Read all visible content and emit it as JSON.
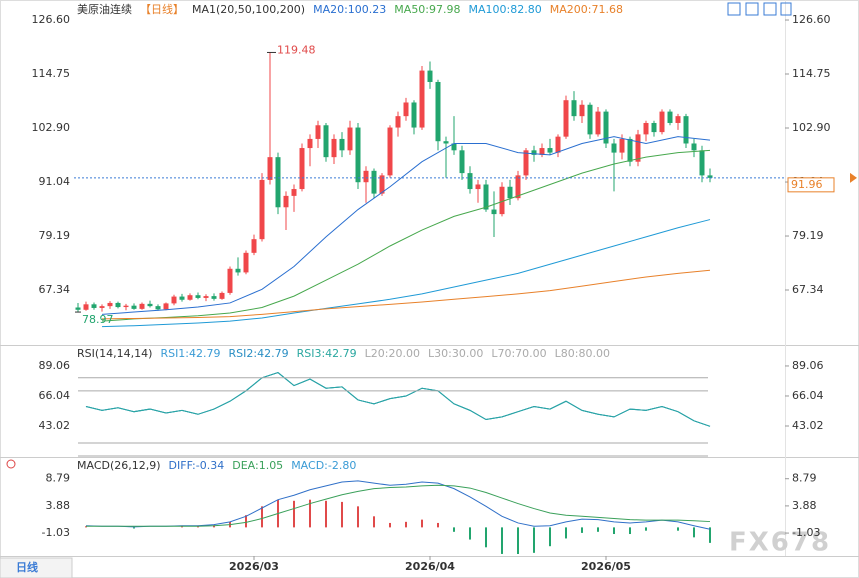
{
  "period_button": "日线",
  "watermark": "FX678",
  "chart_data": [
    {
      "type": "candlestick",
      "title": "美原油连续",
      "period": "【日线】",
      "indicator": "MA1(20,50,100,200)",
      "up_color": "#f0474a",
      "down_color": "#22a56e",
      "ylim": [
        55.27,
        128.36
      ],
      "yticks": [
        67.34,
        79.19,
        91.04,
        {
          "value": 102.9,
          "label": "102.90"
        },
        114.75,
        {
          "value": 126.6,
          "label": "126.60"
        }
      ],
      "max_label": "119.48",
      "min_label": "78.97",
      "last_label": "91.96",
      "xticks": [
        {
          "value": 22,
          "label": "2026/03"
        },
        {
          "value": 44,
          "label": "2026/04"
        },
        {
          "value": 66,
          "label": "2026/05"
        }
      ],
      "candles": [
        [
          63.5,
          64.5,
          62.5,
          63.0
        ],
        [
          63.0,
          64.8,
          62.8,
          64.2
        ],
        [
          64.2,
          64.6,
          63.0,
          63.4
        ],
        [
          63.4,
          64.2,
          62.6,
          63.8
        ],
        [
          63.8,
          64.9,
          63.2,
          64.5
        ],
        [
          64.5,
          64.8,
          63.3,
          63.6
        ],
        [
          63.6,
          64.3,
          62.9,
          63.9
        ],
        [
          63.9,
          64.4,
          63.0,
          63.2
        ],
        [
          63.2,
          64.6,
          63.0,
          64.3
        ],
        [
          64.3,
          65.0,
          63.5,
          63.8
        ],
        [
          63.8,
          64.2,
          62.8,
          63.1
        ],
        [
          63.1,
          64.6,
          62.9,
          64.4
        ],
        [
          64.4,
          66.3,
          64.0,
          65.9
        ],
        [
          65.9,
          66.5,
          64.8,
          65.2
        ],
        [
          65.2,
          66.6,
          65.0,
          66.2
        ],
        [
          66.2,
          66.8,
          65.3,
          65.6
        ],
        [
          65.6,
          66.4,
          64.9,
          66.0
        ],
        [
          66.0,
          66.6,
          65.0,
          65.4
        ],
        [
          65.4,
          67.0,
          65.2,
          66.7
        ],
        [
          66.7,
          72.5,
          66.3,
          72.0
        ],
        [
          72.0,
          74.5,
          70.5,
          71.2
        ],
        [
          71.2,
          76.0,
          70.8,
          75.5
        ],
        [
          75.5,
          79.5,
          75.0,
          78.5
        ],
        [
          78.5,
          93.0,
          78.0,
          91.5
        ],
        [
          91.5,
          119.48,
          90.5,
          96.5
        ],
        [
          96.5,
          97.5,
          84.0,
          85.5
        ],
        [
          85.5,
          89.0,
          80.5,
          88.0
        ],
        [
          88.0,
          90.5,
          84.5,
          89.5
        ],
        [
          89.5,
          99.5,
          89.0,
          98.5
        ],
        [
          98.5,
          101.5,
          94.5,
          100.5
        ],
        [
          100.5,
          104.5,
          98.5,
          103.5
        ],
        [
          103.5,
          104.0,
          95.5,
          96.5
        ],
        [
          96.5,
          101.5,
          95.0,
          100.5
        ],
        [
          100.5,
          102.0,
          96.5,
          98.0
        ],
        [
          98.0,
          104.5,
          97.0,
          103.0
        ],
        [
          103.0,
          104.0,
          89.5,
          91.0
        ],
        [
          91.0,
          94.5,
          86.5,
          93.5
        ],
        [
          93.5,
          94.0,
          87.5,
          88.5
        ],
        [
          88.5,
          93.0,
          88.0,
          92.5
        ],
        [
          92.5,
          103.5,
          92.0,
          103.0
        ],
        [
          103.0,
          106.5,
          101.0,
          105.5
        ],
        [
          105.5,
          109.5,
          104.5,
          108.5
        ],
        [
          108.5,
          109.0,
          101.5,
          103.0
        ],
        [
          103.0,
          116.5,
          102.5,
          115.5
        ],
        [
          115.5,
          117.5,
          111.5,
          113.0
        ],
        [
          113.0,
          113.5,
          98.0,
          100.0
        ],
        [
          100.0,
          101.0,
          92.0,
          99.5
        ],
        [
          99.5,
          105.5,
          97.0,
          98.0
        ],
        [
          98.0,
          99.0,
          91.5,
          93.0
        ],
        [
          93.0,
          94.5,
          88.5,
          89.5
        ],
        [
          89.5,
          91.5,
          86.5,
          90.5
        ],
        [
          90.5,
          91.5,
          84.5,
          85.0
        ],
        [
          85.0,
          89.0,
          78.97,
          84.0
        ],
        [
          84.0,
          91.0,
          83.5,
          90.0
        ],
        [
          90.0,
          91.5,
          86.0,
          87.5
        ],
        [
          87.5,
          93.5,
          87.0,
          92.5
        ],
        [
          92.5,
          98.5,
          91.5,
          98.0
        ],
        [
          98.0,
          99.0,
          95.5,
          97.0
        ],
        [
          97.0,
          99.5,
          96.5,
          98.5
        ],
        [
          98.5,
          100.5,
          97.0,
          97.5
        ],
        [
          97.5,
          101.5,
          96.5,
          101.0
        ],
        [
          101.0,
          110.0,
          100.5,
          109.0
        ],
        [
          109.0,
          111.0,
          104.5,
          105.5
        ],
        [
          105.5,
          109.0,
          104.0,
          108.0
        ],
        [
          108.0,
          108.5,
          100.5,
          101.5
        ],
        [
          101.5,
          107.5,
          101.0,
          106.5
        ],
        [
          106.5,
          107.0,
          98.5,
          99.5
        ],
        [
          99.5,
          100.5,
          89.0,
          97.5
        ],
        [
          97.5,
          101.5,
          96.0,
          100.5
        ],
        [
          100.5,
          101.0,
          94.5,
          95.5
        ],
        [
          95.5,
          102.5,
          94.5,
          101.5
        ],
        [
          101.5,
          104.5,
          100.0,
          104.0
        ],
        [
          104.0,
          104.5,
          101.0,
          102.0
        ],
        [
          102.0,
          107.0,
          101.5,
          106.5
        ],
        [
          106.5,
          107.0,
          103.5,
          104.0
        ],
        [
          104.0,
          106.0,
          102.5,
          105.5
        ],
        [
          105.5,
          106.0,
          98.5,
          99.5
        ],
        [
          99.5,
          100.5,
          96.5,
          98.0
        ],
        [
          98.0,
          99.0,
          91.0,
          92.5
        ],
        [
          92.5,
          94.0,
          91.0,
          91.96
        ]
      ],
      "series": [
        {
          "label": "MA20:100.23",
          "color": "#2a6fd0",
          "x": [
            3,
            7,
            11,
            15,
            19,
            23,
            27,
            31,
            35,
            39,
            43,
            47,
            51,
            55,
            59,
            63,
            67,
            71,
            75,
            79
          ],
          "values": [
            62.0,
            62.5,
            63.0,
            63.6,
            64.5,
            67.5,
            72.5,
            79.0,
            85.0,
            90.0,
            95.5,
            99.5,
            99.5,
            97.5,
            97.0,
            99.5,
            101.0,
            99.5,
            101.0,
            100.23
          ]
        },
        {
          "label": "MA50:97.98",
          "color": "#47a84d",
          "x": [
            3,
            7,
            11,
            15,
            19,
            23,
            27,
            31,
            35,
            39,
            43,
            47,
            51,
            55,
            59,
            63,
            67,
            71,
            75,
            79
          ],
          "values": [
            60.5,
            61.0,
            61.3,
            61.7,
            62.3,
            63.5,
            66.0,
            69.5,
            73.0,
            77.0,
            80.5,
            83.5,
            85.5,
            88.0,
            90.5,
            93.0,
            95.0,
            96.5,
            97.5,
            97.98
          ]
        },
        {
          "label": "MA100:82.80",
          "color": "#1f9ad6",
          "x": [
            3,
            7,
            11,
            15,
            19,
            23,
            27,
            31,
            35,
            39,
            43,
            47,
            51,
            55,
            59,
            63,
            67,
            71,
            75,
            79
          ],
          "values": [
            59.3,
            59.5,
            59.8,
            60.1,
            60.5,
            61.2,
            62.3,
            63.3,
            64.3,
            65.3,
            66.5,
            68.0,
            69.5,
            71.0,
            73.0,
            75.0,
            77.0,
            79.0,
            81.0,
            82.8
          ]
        },
        {
          "label": "MA200:71.68",
          "color": "#e8812a",
          "x": [
            3,
            7,
            11,
            15,
            19,
            23,
            27,
            31,
            35,
            39,
            43,
            47,
            51,
            55,
            59,
            63,
            67,
            71,
            75,
            79
          ],
          "values": [
            61.0,
            61.1,
            61.2,
            61.3,
            61.5,
            62.0,
            62.6,
            63.2,
            63.7,
            64.2,
            64.7,
            65.3,
            65.9,
            66.5,
            67.2,
            68.2,
            69.2,
            70.2,
            71.0,
            71.68
          ]
        }
      ]
    },
    {
      "type": "line",
      "title": "RSI(14,14,14)",
      "ylim": [
        20.78,
        101.3
      ],
      "yticks": [
        89.06,
        66.04,
        43.02
      ],
      "levels": [
        20,
        30,
        70,
        80
      ],
      "level_labels": [
        "L20:20.00",
        "L30:30.00",
        "L70:70.00",
        "L80:80.00"
      ],
      "x": [
        1,
        3,
        5,
        7,
        9,
        11,
        13,
        15,
        17,
        19,
        21,
        23,
        25,
        27,
        29,
        31,
        33,
        35,
        37,
        39,
        41,
        43,
        45,
        47,
        49,
        51,
        53,
        55,
        57,
        59,
        61,
        63,
        65,
        67,
        69,
        71,
        73,
        75,
        77,
        79
      ],
      "series": [
        {
          "label": "RSI1:42.79",
          "color": "#3a9bd5",
          "values": [
            58,
            55,
            57,
            54,
            56,
            53,
            55,
            52,
            56,
            62,
            70,
            80,
            84,
            74,
            79,
            72,
            73,
            63,
            60,
            64,
            66,
            72,
            70,
            60,
            55,
            48,
            50,
            54,
            58,
            56,
            62,
            55,
            52,
            50,
            56,
            55,
            58,
            54,
            47,
            42.79
          ]
        },
        {
          "label": "RSI2:42.79",
          "color": "#2b8fc4",
          "values": [
            58,
            55,
            57,
            54,
            56,
            53,
            55,
            52,
            56,
            62,
            70,
            80,
            84,
            74,
            79,
            72,
            73,
            63,
            60,
            64,
            66,
            72,
            70,
            60,
            55,
            48,
            50,
            54,
            58,
            56,
            62,
            55,
            52,
            50,
            56,
            55,
            58,
            54,
            47,
            42.79
          ]
        },
        {
          "label": "RSI3:42.79",
          "color": "#2aa7a0",
          "values": [
            58,
            55,
            57,
            54,
            56,
            53,
            55,
            52,
            56,
            62,
            70,
            80,
            84,
            74,
            79,
            72,
            73,
            63,
            60,
            64,
            66,
            72,
            70,
            60,
            55,
            48,
            50,
            54,
            58,
            56,
            62,
            55,
            52,
            50,
            56,
            55,
            58,
            54,
            47,
            42.79
          ]
        }
      ]
    },
    {
      "type": "macd",
      "title": "MACD(26,12,9)",
      "ylim": [
        -4.81,
        11.81
      ],
      "yticks": [
        8.79,
        3.88,
        -1.03
      ],
      "up_color": "#e04a4a",
      "down_color": "#22a56e",
      "x": [
        1,
        3,
        5,
        7,
        9,
        11,
        13,
        15,
        17,
        19,
        21,
        23,
        25,
        27,
        29,
        31,
        33,
        35,
        37,
        39,
        41,
        43,
        45,
        47,
        49,
        51,
        53,
        55,
        57,
        59,
        61,
        63,
        65,
        67,
        69,
        71,
        73,
        75,
        77,
        79
      ],
      "series": [
        {
          "label": "DIFF:-0.34",
          "color": "#3070c8",
          "values": [
            0.3,
            0.2,
            0.2,
            0.1,
            0.2,
            0.2,
            0.3,
            0.3,
            0.5,
            1.0,
            2.0,
            3.5,
            5.0,
            5.8,
            6.8,
            7.5,
            8.2,
            8.4,
            8.0,
            7.6,
            7.8,
            8.2,
            8.0,
            7.0,
            5.5,
            3.8,
            2.0,
            0.8,
            0.2,
            0.3,
            1.0,
            1.5,
            1.4,
            1.0,
            0.8,
            1.0,
            1.3,
            1.0,
            0.3,
            -0.34
          ]
        },
        {
          "label": "DEA:1.05",
          "color": "#3aa05a",
          "values": [
            0.2,
            0.2,
            0.2,
            0.2,
            0.2,
            0.2,
            0.2,
            0.2,
            0.3,
            0.5,
            0.9,
            1.6,
            2.5,
            3.4,
            4.3,
            5.1,
            5.9,
            6.5,
            7.0,
            7.2,
            7.3,
            7.5,
            7.6,
            7.5,
            7.1,
            6.3,
            5.3,
            4.3,
            3.4,
            2.6,
            2.2,
            2.0,
            1.8,
            1.6,
            1.4,
            1.3,
            1.3,
            1.3,
            1.2,
            1.05
          ]
        }
      ],
      "histogram": {
        "label": "MACD:-2.80",
        "values": [
          0.2,
          0.0,
          0.0,
          -0.2,
          0.0,
          0.0,
          0.2,
          0.2,
          0.4,
          1.0,
          2.2,
          3.8,
          5.0,
          4.8,
          5.0,
          4.8,
          4.6,
          3.8,
          2.0,
          0.8,
          1.0,
          1.4,
          0.8,
          -0.8,
          -2.2,
          -3.6,
          -4.8,
          -5.2,
          -4.6,
          -3.4,
          -2.0,
          -1.0,
          -0.8,
          -1.2,
          -1.2,
          -0.6,
          0.0,
          -0.6,
          -1.8,
          -2.8
        ]
      }
    }
  ]
}
